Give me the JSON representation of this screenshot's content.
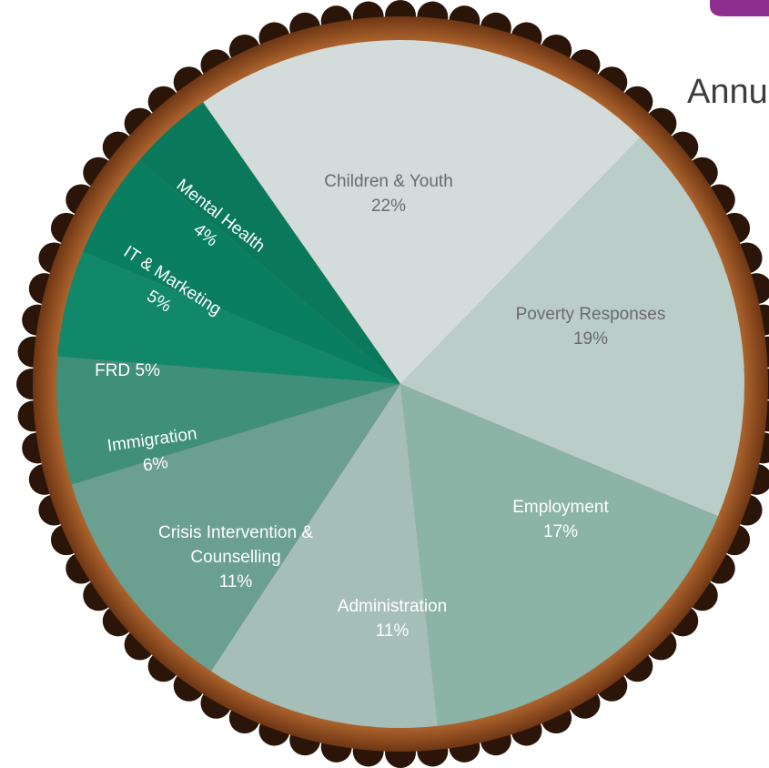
{
  "chart_data": {
    "type": "pie",
    "title": "Annu",
    "categories": [
      "Children & Youth",
      "Poverty Responses",
      "Employment",
      "Administration",
      "Crisis Intervention & Counselling",
      "Immigration",
      "FRD",
      "IT & Marketing",
      "Mental Health"
    ],
    "values": [
      22,
      19,
      17,
      11,
      11,
      6,
      5,
      5,
      4
    ],
    "value_labels": [
      "22%",
      "19%",
      "17%",
      "11%",
      "11%",
      "6%",
      "5%",
      "5%",
      "4%"
    ],
    "colors": [
      "#d3dcda",
      "#bacdc8",
      "#8bb3a6",
      "#a5bfb8",
      "#6b9f8f",
      "#3f8f79",
      "#12886b",
      "#0a7e60",
      "#0a795b"
    ]
  }
}
